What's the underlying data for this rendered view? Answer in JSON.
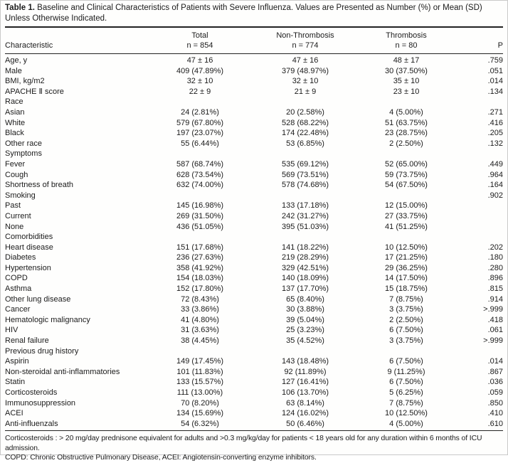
{
  "title": {
    "label": "Table 1.",
    "text": "Baseline and Clinical Characteristics of Patients with Severe Influenza. Values are Presented as Number (%) or Mean (SD) Unless Otherwise Indicated."
  },
  "table": {
    "header": {
      "characteristic": "Characteristic",
      "total_label": "Total",
      "total_n": "n = 854",
      "non_thrombosis_label": "Non-Thrombosis",
      "non_thrombosis_n": "n = 774",
      "thrombosis_label": "Thrombosis",
      "thrombosis_n": "n = 80",
      "p_label": "P"
    },
    "rows": [
      {
        "characteristic": "Age, y",
        "total": "47 ± 16",
        "non_thrombosis": "47 ± 16",
        "thrombosis": "48 ± 17",
        "p": ".759"
      },
      {
        "characteristic": "Male",
        "total": "409 (47.89%)",
        "non_thrombosis": "379 (48.97%)",
        "thrombosis": "30 (37.50%)",
        "p": ".051"
      },
      {
        "characteristic": "BMI, kg/m2",
        "total": "32 ± 10",
        "non_thrombosis": "32 ± 10",
        "thrombosis": "35 ± 10",
        "p": ".014"
      },
      {
        "characteristic": "APACHE Ⅱ score",
        "total": "22 ± 9",
        "non_thrombosis": "21 ± 9",
        "thrombosis": "23 ± 10",
        "p": ".134"
      },
      {
        "characteristic": "Race",
        "total": "",
        "non_thrombosis": "",
        "thrombosis": "",
        "p": ""
      },
      {
        "characteristic": "Asian",
        "total": "24 (2.81%)",
        "non_thrombosis": "20 (2.58%)",
        "thrombosis": "4 (5.00%)",
        "p": ".271"
      },
      {
        "characteristic": "White",
        "total": "579 (67.80%)",
        "non_thrombosis": "528 (68.22%)",
        "thrombosis": "51 (63.75%)",
        "p": ".416"
      },
      {
        "characteristic": "Black",
        "total": "197 (23.07%)",
        "non_thrombosis": "174 (22.48%)",
        "thrombosis": "23 (28.75%)",
        "p": ".205"
      },
      {
        "characteristic": "Other race",
        "total": "55 (6.44%)",
        "non_thrombosis": "53 (6.85%)",
        "thrombosis": "2 (2.50%)",
        "p": ".132"
      },
      {
        "characteristic": "Symptoms",
        "total": "",
        "non_thrombosis": "",
        "thrombosis": "",
        "p": ""
      },
      {
        "characteristic": "Fever",
        "total": "587 (68.74%)",
        "non_thrombosis": "535 (69.12%)",
        "thrombosis": "52 (65.00%)",
        "p": ".449"
      },
      {
        "characteristic": "Cough",
        "total": "628 (73.54%)",
        "non_thrombosis": "569 (73.51%)",
        "thrombosis": "59 (73.75%)",
        "p": ".964"
      },
      {
        "characteristic": "Shortness of breath",
        "total": "632 (74.00%)",
        "non_thrombosis": "578 (74.68%)",
        "thrombosis": "54 (67.50%)",
        "p": ".164"
      },
      {
        "characteristic": "Smoking",
        "total": "",
        "non_thrombosis": "",
        "thrombosis": "",
        "p": ".902"
      },
      {
        "characteristic": "Past",
        "total": "145 (16.98%)",
        "non_thrombosis": "133 (17.18%)",
        "thrombosis": "12 (15.00%)",
        "p": ""
      },
      {
        "characteristic": "Current",
        "total": "269 (31.50%)",
        "non_thrombosis": "242 (31.27%)",
        "thrombosis": "27 (33.75%)",
        "p": ""
      },
      {
        "characteristic": "None",
        "total": "436 (51.05%)",
        "non_thrombosis": "395 (51.03%)",
        "thrombosis": "41 (51.25%)",
        "p": ""
      },
      {
        "characteristic": "Comorbidities",
        "total": "",
        "non_thrombosis": "",
        "thrombosis": "",
        "p": ""
      },
      {
        "characteristic": "Heart disease",
        "total": "151 (17.68%)",
        "non_thrombosis": "141 (18.22%)",
        "thrombosis": "10 (12.50%)",
        "p": ".202"
      },
      {
        "characteristic": "Diabetes",
        "total": "236 (27.63%)",
        "non_thrombosis": "219 (28.29%)",
        "thrombosis": "17 (21.25%)",
        "p": ".180"
      },
      {
        "characteristic": "Hypertension",
        "total": "358 (41.92%)",
        "non_thrombosis": "329 (42.51%)",
        "thrombosis": "29 (36.25%)",
        "p": ".280"
      },
      {
        "characteristic": "COPD",
        "total": "154 (18.03%)",
        "non_thrombosis": "140 (18.09%)",
        "thrombosis": "14 (17.50%)",
        "p": ".896"
      },
      {
        "characteristic": "Asthma",
        "total": "152 (17.80%)",
        "non_thrombosis": "137 (17.70%)",
        "thrombosis": "15 (18.75%)",
        "p": ".815"
      },
      {
        "characteristic": "Other lung disease",
        "total": "72 (8.43%)",
        "non_thrombosis": "65 (8.40%)",
        "thrombosis": "7 (8.75%)",
        "p": ".914"
      },
      {
        "characteristic": "Cancer",
        "total": "33 (3.86%)",
        "non_thrombosis": "30 (3.88%)",
        "thrombosis": "3 (3.75%)",
        "p": ">.999"
      },
      {
        "characteristic": "Hematologic malignancy",
        "total": "41 (4.80%)",
        "non_thrombosis": "39 (5.04%)",
        "thrombosis": "2 (2.50%)",
        "p": ".418"
      },
      {
        "characteristic": "HIV",
        "total": "31 (3.63%)",
        "non_thrombosis": "25 (3.23%)",
        "thrombosis": "6 (7.50%)",
        "p": ".061"
      },
      {
        "characteristic": "Renal failure",
        "total": "38 (4.45%)",
        "non_thrombosis": "35 (4.52%)",
        "thrombosis": "3 (3.75%)",
        "p": ">.999"
      },
      {
        "characteristic": "Previous drug history",
        "total": "",
        "non_thrombosis": "",
        "thrombosis": "",
        "p": ""
      },
      {
        "characteristic": "Aspirin",
        "total": "149 (17.45%)",
        "non_thrombosis": "143 (18.48%)",
        "thrombosis": "6 (7.50%)",
        "p": ".014"
      },
      {
        "characteristic": "Non-steroidal anti-inflammatories",
        "total": "101 (11.83%)",
        "non_thrombosis": "92 (11.89%)",
        "thrombosis": "9 (11.25%)",
        "p": ".867"
      },
      {
        "characteristic": "Statin",
        "total": "133 (15.57%)",
        "non_thrombosis": "127 (16.41%)",
        "thrombosis": "6 (7.50%)",
        "p": ".036"
      },
      {
        "characteristic": "Corticosteroids",
        "total": "111 (13.00%)",
        "non_thrombosis": "106 (13.70%)",
        "thrombosis": "5 (6.25%)",
        "p": ".059"
      },
      {
        "characteristic": "Immunosuppression",
        "total": "70 (8.20%)",
        "non_thrombosis": "63 (8.14%)",
        "thrombosis": "7 (8.75%)",
        "p": ".850"
      },
      {
        "characteristic": "ACEI",
        "total": "134 (15.69%)",
        "non_thrombosis": "124 (16.02%)",
        "thrombosis": "10 (12.50%)",
        "p": ".410"
      },
      {
        "characteristic": "Anti-influenzals",
        "total": "54 (6.32%)",
        "non_thrombosis": "50 (6.46%)",
        "thrombosis": "4 (5.00%)",
        "p": ".610"
      }
    ]
  },
  "footnotes": [
    "Corticosteroids : > 20 mg/day prednisone equivalent for adults and >0.3 mg/kg/day for patients < 18 years old for any duration within 6 months of ICU admission.",
    "COPD: Chronic Obstructive Pulmonary Disease, ACEI: Angiotensin-converting enzyme inhibitors."
  ]
}
